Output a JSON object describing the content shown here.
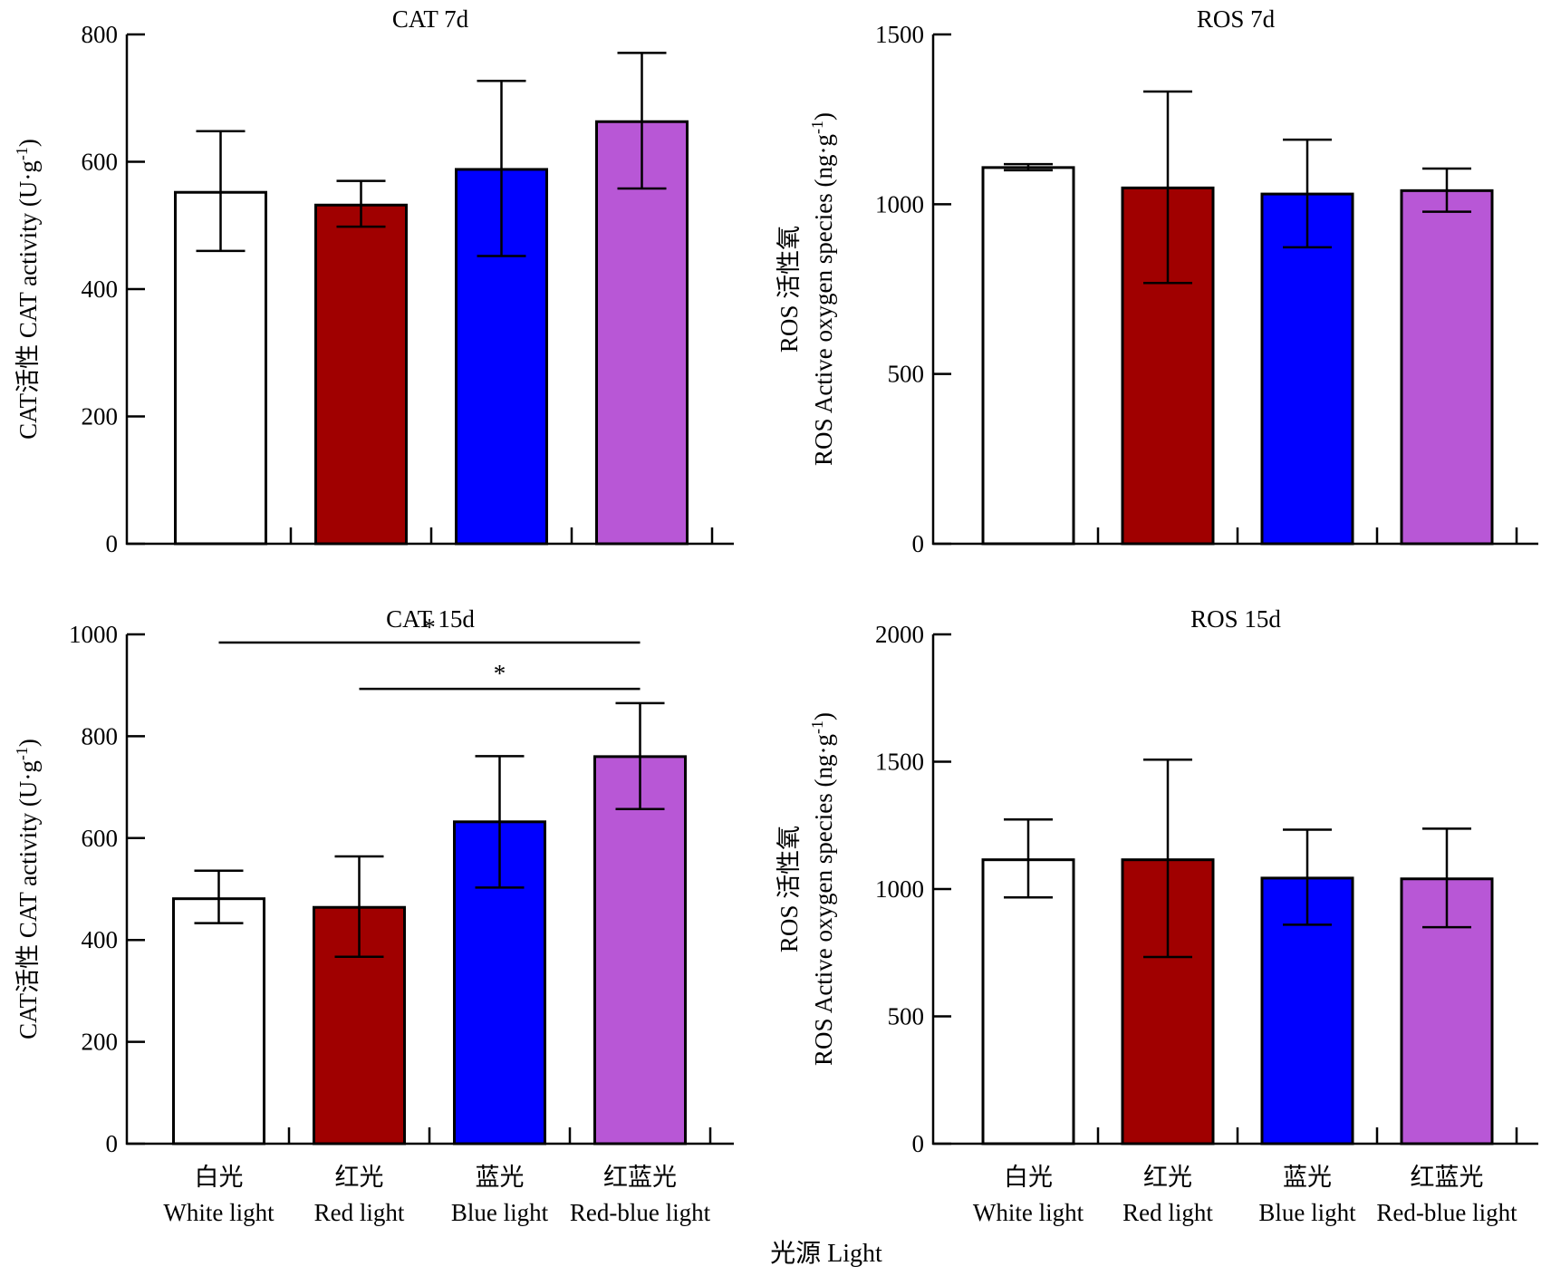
{
  "x_axis_label": "光源 Light",
  "categories": [
    {
      "zh": "白光",
      "en": "White light"
    },
    {
      "zh": "红光",
      "en": "Red light"
    },
    {
      "zh": "蓝光",
      "en": "Blue light"
    },
    {
      "zh": "红蓝光",
      "en": "Red-blue light"
    }
  ],
  "colors": {
    "White light": "#ffffff",
    "Red light": "#a00000",
    "Blue light": "#0000ff",
    "Red-blue light": "#b857d6",
    "axis": "#000000"
  },
  "chart_data": [
    {
      "type": "bar",
      "title": "CAT 7d",
      "ylabel_zh": "CAT活性 CAT activity (U·g",
      "ylabel_sup": "-1",
      "ylabel_close": ")",
      "ylim": [
        0,
        800
      ],
      "yticks": [
        0,
        200,
        400,
        600,
        800
      ],
      "categories": [
        "White light",
        "Red light",
        "Blue light",
        "Red-blue light"
      ],
      "values": [
        552,
        532,
        588,
        663
      ],
      "err_low": [
        460,
        498,
        452,
        558
      ],
      "err_high": [
        648,
        570,
        727,
        771
      ],
      "significance": []
    },
    {
      "type": "bar",
      "title": "ROS 7d",
      "ylabel_line1": "ROS 活性氧",
      "ylabel_line2": "ROS Active oxygen species (ng·g",
      "ylabel_sup": "-1",
      "ylabel_close": ")",
      "ylim": [
        0,
        1500
      ],
      "yticks": [
        0,
        500,
        1000,
        1500
      ],
      "categories": [
        "White light",
        "Red light",
        "Blue light",
        "Red-blue light"
      ],
      "values": [
        1108,
        1048,
        1030,
        1040
      ],
      "err_low": [
        1100,
        768,
        873,
        978
      ],
      "err_high": [
        1118,
        1332,
        1190,
        1105
      ],
      "significance": []
    },
    {
      "type": "bar",
      "title": "CAT 15d",
      "ylabel_zh": "CAT活性 CAT activity (U·g",
      "ylabel_sup": "-1",
      "ylabel_close": ")",
      "ylim": [
        0,
        1000
      ],
      "yticks": [
        0,
        200,
        400,
        600,
        800,
        1000
      ],
      "categories": [
        "White light",
        "Red light",
        "Blue light",
        "Red-blue light"
      ],
      "values": [
        481,
        464,
        632,
        760
      ],
      "err_low": [
        433,
        367,
        503,
        657
      ],
      "err_high": [
        536,
        564,
        761,
        865
      ],
      "significance": [
        {
          "from": 0,
          "to": 3,
          "label": "*",
          "level": 984
        },
        {
          "from": 1,
          "to": 3,
          "label": "*",
          "level": 893
        }
      ]
    },
    {
      "type": "bar",
      "title": "ROS 15d",
      "ylabel_line1": "ROS 活性氧",
      "ylabel_line2": "ROS Active oxygen species (ng·g",
      "ylabel_sup": "-1",
      "ylabel_close": ")",
      "ylim": [
        0,
        2000
      ],
      "yticks": [
        0,
        500,
        1000,
        1500,
        2000
      ],
      "categories": [
        "White light",
        "Red light",
        "Blue light",
        "Red-blue light"
      ],
      "values": [
        1115,
        1115,
        1043,
        1040
      ],
      "err_low": [
        967,
        733,
        860,
        850
      ],
      "err_high": [
        1273,
        1508,
        1233,
        1237
      ],
      "significance": []
    }
  ]
}
